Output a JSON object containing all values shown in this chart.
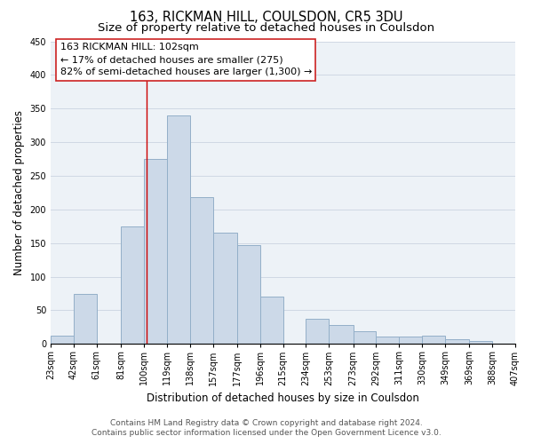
{
  "title": "163, RICKMAN HILL, COULSDON, CR5 3DU",
  "subtitle": "Size of property relative to detached houses in Coulsdon",
  "xlabel": "Distribution of detached houses by size in Coulsdon",
  "ylabel": "Number of detached properties",
  "bar_color": "#ccd9e8",
  "bar_edge_color": "#93afc8",
  "bar_left_edges": [
    23,
    42,
    61,
    81,
    100,
    119,
    138,
    157,
    177,
    196,
    215,
    234,
    253,
    273,
    292,
    311,
    330,
    349,
    369,
    388
  ],
  "bar_widths": [
    19,
    19,
    20,
    19,
    19,
    19,
    19,
    20,
    19,
    19,
    19,
    19,
    20,
    19,
    19,
    19,
    19,
    20,
    19,
    19
  ],
  "bar_heights": [
    13,
    75,
    0,
    175,
    275,
    340,
    218,
    165,
    147,
    70,
    0,
    37,
    28,
    19,
    11,
    11,
    13,
    7,
    4,
    0
  ],
  "xtick_labels": [
    "23sqm",
    "42sqm",
    "61sqm",
    "81sqm",
    "100sqm",
    "119sqm",
    "138sqm",
    "157sqm",
    "177sqm",
    "196sqm",
    "215sqm",
    "234sqm",
    "253sqm",
    "273sqm",
    "292sqm",
    "311sqm",
    "330sqm",
    "349sqm",
    "369sqm",
    "388sqm",
    "407sqm"
  ],
  "ylim": [
    0,
    450
  ],
  "yticks": [
    0,
    50,
    100,
    150,
    200,
    250,
    300,
    350,
    400,
    450
  ],
  "property_line_x": 102,
  "ann_line1": "163 RICKMAN HILL: 102sqm",
  "ann_line2": "← 17% of detached houses are smaller (275)",
  "ann_line3": "82% of semi-detached houses are larger (1,300) →",
  "grid_color": "#d0d8e4",
  "bg_color": "#edf2f7",
  "footer_line1": "Contains HM Land Registry data © Crown copyright and database right 2024.",
  "footer_line2": "Contains public sector information licensed under the Open Government Licence v3.0.",
  "title_fontsize": 10.5,
  "subtitle_fontsize": 9.5,
  "axis_label_fontsize": 8.5,
  "tick_fontsize": 7,
  "annotation_fontsize": 8,
  "footer_fontsize": 6.5
}
